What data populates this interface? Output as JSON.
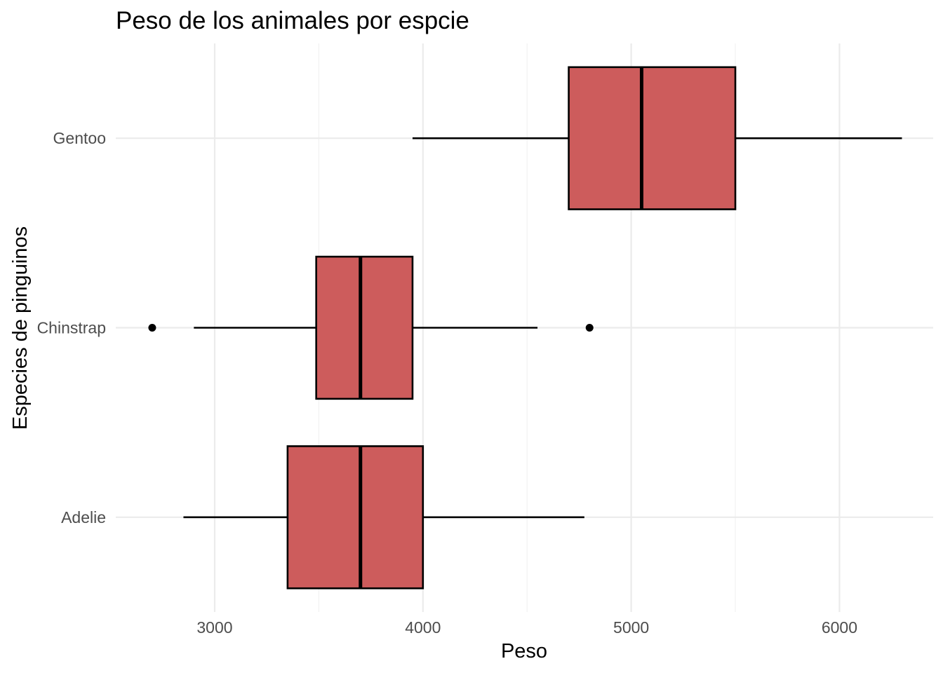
{
  "chart_data": {
    "type": "boxplot",
    "orientation": "horizontal",
    "title": "Peso de los animales por espcie",
    "xlabel": "Peso",
    "ylabel": "Especies de pinguinos",
    "xlim": [
      2525,
      6450
    ],
    "x_ticks": [
      3000,
      4000,
      5000,
      6000
    ],
    "grid": true,
    "legend": "none",
    "box_fill": "#cd5c5c",
    "box_stroke": "#000000",
    "categories": [
      "Adelie",
      "Chinstrap",
      "Gentoo"
    ],
    "boxes": [
      {
        "category": "Adelie",
        "whisker_low": 2850,
        "q1": 3350,
        "median": 3700,
        "q3": 4000,
        "whisker_high": 4775,
        "outliers": []
      },
      {
        "category": "Chinstrap",
        "whisker_low": 2900,
        "q1": 3487.5,
        "median": 3700,
        "q3": 3950,
        "whisker_high": 4550,
        "outliers": [
          2700,
          4800
        ]
      },
      {
        "category": "Gentoo",
        "whisker_low": 3950,
        "q1": 4700,
        "median": 5050,
        "q3": 5500,
        "whisker_high": 6300,
        "outliers": []
      }
    ]
  }
}
